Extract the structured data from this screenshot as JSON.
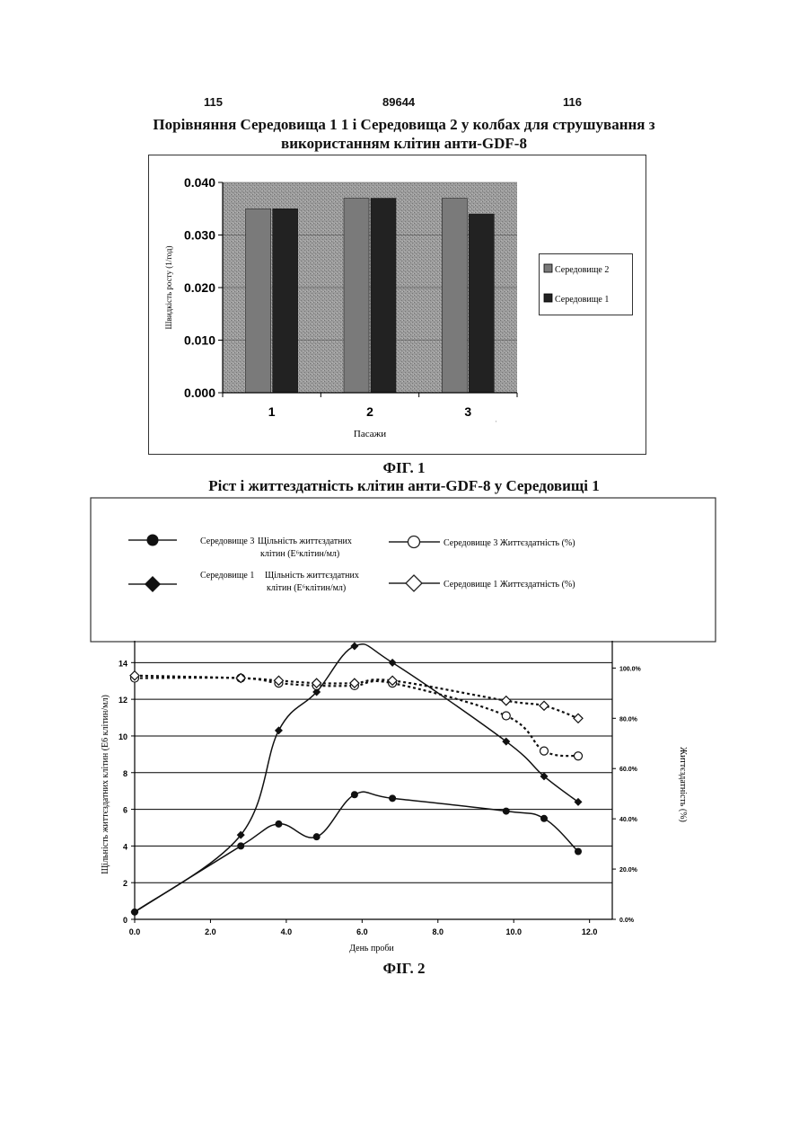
{
  "header": {
    "left": "115",
    "center": "89644",
    "right": "116"
  },
  "fig1": {
    "title_line1": "Порівняння Середовища 1 1 і Середовища 2 у колбах для струшування з",
    "title_line2": "використанням клітин анти-GDF-8",
    "caption": "ФІГ. 1"
  },
  "fig2": {
    "title": "Ріст і життездатність клітин анти-GDF-8 у Середовищі 1",
    "caption": "ФІГ. 2",
    "legend": {
      "s3_density_medium": "Середовище 3",
      "s3_density_line1": "Щільність життєздатних",
      "s3_density_line2": "клітин (E⁶клітин/мл)",
      "s1_density_medium": "Середовище 1",
      "s1_density_line1": "Щільність життєздатних",
      "s1_density_line2": "клітин (E⁶клітин/мл)",
      "s3_viability": "Середовище 3  Життєздатність (%)",
      "s1_viability": "Середовище 1  Життєздатність (%)"
    }
  },
  "chart_data": [
    {
      "type": "bar",
      "categories": [
        "1",
        "2",
        "3"
      ],
      "series": [
        {
          "name": "Середовище 2",
          "values": [
            0.035,
            0.037,
            0.037
          ]
        },
        {
          "name": "Середовище 1",
          "values": [
            0.035,
            0.037,
            0.034
          ]
        }
      ],
      "y_ticks": [
        "0.000",
        "0.010",
        "0.020",
        "0.030",
        "0.040"
      ],
      "ylim": [
        0,
        0.04
      ],
      "xlabel": "Пасажи",
      "ylabel": "Швидкість росту (1/год)",
      "legend_position": "right",
      "colors": {
        "series1": "#7a7a7a",
        "series2": "#222222",
        "plot_bg": "#9a9a9a"
      }
    },
    {
      "type": "line",
      "xlabel": "День проби",
      "ylabel": "Щільність життєздатних клітин (E6 клітин/мл)",
      "y2label": "Життєздатність (%)",
      "x_ticks": [
        "0.0",
        "2.0",
        "4.0",
        "6.0",
        "8.0",
        "10.0",
        "12.0"
      ],
      "y_ticks": [
        "0",
        "2",
        "4",
        "6",
        "8",
        "10",
        "12",
        "14"
      ],
      "y2_ticks": [
        "0.0%",
        "20.0%",
        "40.0%",
        "60.0%",
        "80.0%",
        "100.0%"
      ],
      "xlim": [
        0,
        12.6
      ],
      "ylim": [
        0,
        14.8
      ],
      "y2lim": [
        0,
        108
      ],
      "series": [
        {
          "name": "Середовище 3",
          "axis": "left",
          "marker": "circle-filled",
          "x": [
            0,
            2.8,
            3.8,
            4.8,
            5.8,
            6.8,
            9.8,
            10.8,
            11.7
          ],
          "y": [
            0.4,
            4.0,
            5.2,
            4.5,
            6.8,
            6.6,
            5.9,
            5.5,
            3.7
          ]
        },
        {
          "name": "Середовище 1",
          "axis": "left",
          "marker": "diamond-filled",
          "x": [
            0,
            2.8,
            3.8,
            4.8,
            5.8,
            6.8,
            9.8,
            10.8,
            11.7
          ],
          "y": [
            0.4,
            4.6,
            10.3,
            12.4,
            14.9,
            14.0,
            9.7,
            7.8,
            6.4
          ]
        },
        {
          "name": "Середовище 3",
          "axis": "right",
          "marker": "circle-open",
          "x": [
            0,
            2.8,
            3.8,
            4.8,
            5.8,
            6.8,
            9.8,
            10.8,
            11.7
          ],
          "y": [
            96,
            96,
            94,
            93,
            93,
            94,
            81,
            67,
            65
          ]
        },
        {
          "name": "Середовище 1",
          "axis": "right",
          "marker": "diamond-open",
          "x": [
            0,
            2.8,
            3.8,
            4.8,
            5.8,
            6.8,
            9.8,
            10.8,
            11.7
          ],
          "y": [
            97,
            96,
            95,
            94,
            94,
            95,
            87,
            85,
            80
          ]
        }
      ]
    }
  ]
}
